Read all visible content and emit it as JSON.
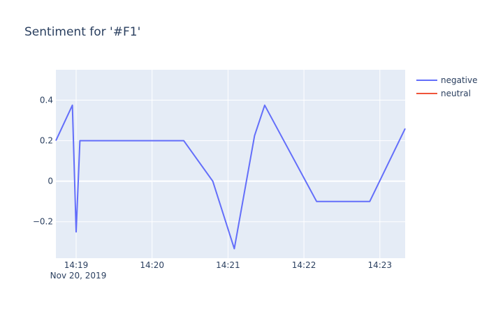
{
  "chart_data": {
    "type": "line",
    "title": "Sentiment for '#F1'",
    "xlabel": "",
    "ylabel": "",
    "x_type": "time",
    "x_date_label": "Nov 20, 2019",
    "x_tick_labels": [
      "14:19",
      "14:20",
      "14:21",
      "14:22",
      "14:23"
    ],
    "y_tick_labels": [
      "0.4",
      "0.2",
      "0",
      "−0.2"
    ],
    "y_ticks": [
      0.4,
      0.2,
      0,
      -0.2
    ],
    "ylim": [
      -0.38,
      0.55
    ],
    "xlim": [
      "14:18:44",
      "14:23:20"
    ],
    "grid": true,
    "legend_position": "top-right",
    "colors": {
      "plot_background": "#e5ecf6",
      "grid": "#ffffff",
      "negative": "#636efa",
      "neutral": "#ef553b",
      "text": "#2a3f5f"
    },
    "series": [
      {
        "name": "negative",
        "x": [
          "14:18:44",
          "14:18:57",
          "14:19:00",
          "14:19:03",
          "14:20:25",
          "14:20:48",
          "14:21:05",
          "14:21:21",
          "14:21:29",
          "14:22:10",
          "14:22:52",
          "14:23:20"
        ],
        "y": [
          0.2,
          0.375,
          -0.25,
          0.2,
          0.2,
          0.0,
          -0.333,
          0.225,
          0.375,
          -0.1,
          -0.1,
          0.26
        ]
      },
      {
        "name": "neutral",
        "x": [],
        "y": []
      }
    ]
  }
}
